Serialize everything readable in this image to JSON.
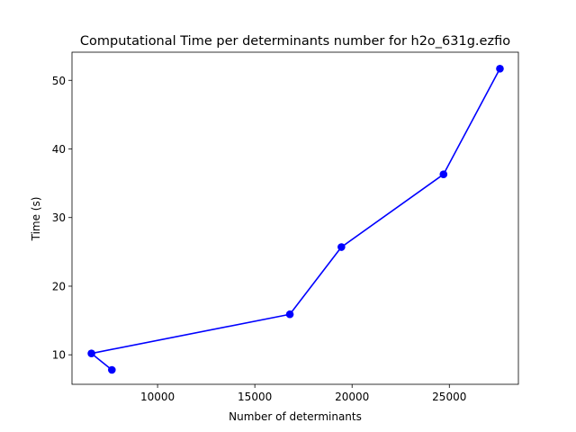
{
  "chart_data": {
    "type": "line",
    "title": "Computational Time per determinants number for h2o_631g.ezfio",
    "xlabel": "Number of determinants",
    "ylabel": "Time (s)",
    "xlim": [
      5600,
      28550
    ],
    "ylim": [
      5.7,
      54.1
    ],
    "xticks": [
      10000,
      15000,
      20000,
      25000
    ],
    "yticks": [
      10,
      20,
      30,
      40,
      50
    ],
    "xtick_labels": [
      "10000",
      "15000",
      "20000",
      "25000"
    ],
    "ytick_labels": [
      "10",
      "20",
      "30",
      "40",
      "50"
    ],
    "grid": false,
    "legend": "none",
    "series": [
      {
        "color": "#0000ff",
        "marker": "circle",
        "x": [
          7650,
          6600,
          16800,
          19450,
          24700,
          27600
        ],
        "y": [
          7.8,
          10.2,
          15.9,
          25.7,
          36.3,
          51.7
        ]
      }
    ]
  }
}
